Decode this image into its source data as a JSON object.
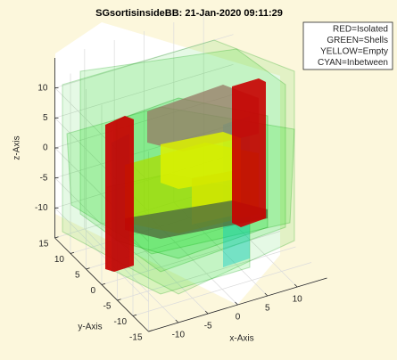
{
  "chart_data": {
    "type": "3d-boxes",
    "title": "SGsortisinsideBB: 21-Jan-2020 09:11:29",
    "xlabel": "x-Axis",
    "ylabel": "y-Axis",
    "zlabel": "z-Axis",
    "xlim": [
      -15,
      15
    ],
    "ylim": [
      -15,
      15
    ],
    "zlim": [
      -15,
      15
    ],
    "xticks": [
      -10,
      -5,
      0,
      5,
      10
    ],
    "yticks": [
      -15,
      -10,
      -5,
      0,
      5,
      10,
      15
    ],
    "zticks": [
      -10,
      -5,
      0,
      5,
      10
    ],
    "grid": true,
    "legend": [
      "RED=Isolated",
      "GREEN=Shells",
      "YELLOW=Empty",
      "CYAN=Inbetween"
    ],
    "legend_position": "northeast"
  }
}
